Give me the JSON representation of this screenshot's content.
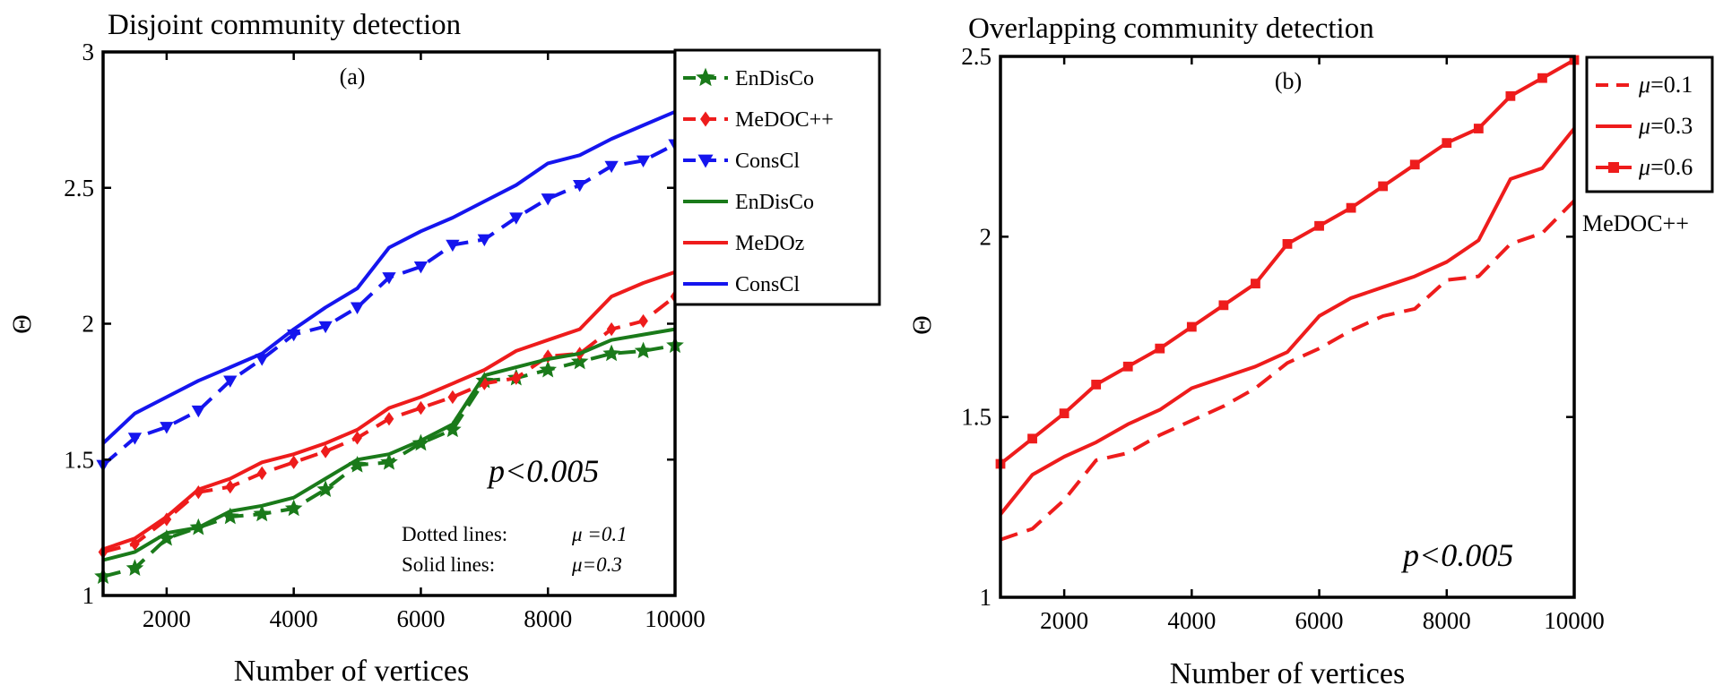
{
  "chart_data": [
    {
      "type": "line",
      "title": "Disjoint community detection",
      "panel_label": "(a)",
      "xlabel": "Number of vertices",
      "ylabel": "Θ",
      "xlim": [
        1000,
        10000
      ],
      "ylim": [
        1,
        3
      ],
      "xticks": [
        2000,
        4000,
        6000,
        8000,
        10000
      ],
      "yticks": [
        1,
        1.5,
        2,
        2.5,
        3
      ],
      "grid": false,
      "legend_position": "outside-top-right",
      "annotation": "p<0.005",
      "notes": [
        {
          "label": "Dotted lines:",
          "value": "μ =0.1"
        },
        {
          "label": "Solid lines:",
          "value": "μ=0.3"
        }
      ],
      "x": [
        1000,
        1500,
        2000,
        2500,
        3000,
        3500,
        4000,
        4500,
        5000,
        5500,
        6000,
        6500,
        7000,
        7500,
        8000,
        8500,
        9000,
        9500,
        10000
      ],
      "series": [
        {
          "name": "EnDisCo",
          "style": "dashed",
          "marker": "star",
          "color": "#1a7a1a",
          "values": [
            1.07,
            1.1,
            1.21,
            1.25,
            1.29,
            1.3,
            1.32,
            1.39,
            1.48,
            1.49,
            1.56,
            1.61,
            1.79,
            1.8,
            1.83,
            1.86,
            1.89,
            1.9,
            1.92
          ]
        },
        {
          "name": "MeDOC++",
          "style": "dashed",
          "marker": "diamond",
          "color": "#ee1c1c",
          "values": [
            1.16,
            1.19,
            1.28,
            1.38,
            1.4,
            1.45,
            1.49,
            1.53,
            1.58,
            1.65,
            1.69,
            1.73,
            1.78,
            1.8,
            1.88,
            1.89,
            1.98,
            2.01,
            2.1
          ]
        },
        {
          "name": "ConsCl",
          "style": "dashed",
          "marker": "triangle-down",
          "color": "#1515ee",
          "values": [
            1.48,
            1.58,
            1.62,
            1.68,
            1.79,
            1.87,
            1.96,
            1.99,
            2.06,
            2.17,
            2.21,
            2.29,
            2.31,
            2.39,
            2.46,
            2.51,
            2.58,
            2.6,
            2.66
          ]
        },
        {
          "name": "EnDisCo",
          "style": "solid",
          "marker": "none",
          "color": "#1a7a1a",
          "values": [
            1.13,
            1.16,
            1.23,
            1.25,
            1.31,
            1.33,
            1.36,
            1.43,
            1.5,
            1.52,
            1.57,
            1.63,
            1.81,
            1.84,
            1.87,
            1.89,
            1.94,
            1.96,
            1.98
          ]
        },
        {
          "name": "MeDOz",
          "style": "solid",
          "marker": "none",
          "color": "#ee1c1c",
          "values": [
            1.17,
            1.21,
            1.29,
            1.39,
            1.43,
            1.49,
            1.52,
            1.56,
            1.61,
            1.69,
            1.73,
            1.78,
            1.83,
            1.9,
            1.94,
            1.98,
            2.1,
            2.15,
            2.19
          ]
        },
        {
          "name": "ConsCl",
          "style": "solid",
          "marker": "none",
          "color": "#1515ee",
          "values": [
            1.56,
            1.67,
            1.73,
            1.79,
            1.84,
            1.89,
            1.98,
            2.06,
            2.13,
            2.28,
            2.34,
            2.39,
            2.45,
            2.51,
            2.59,
            2.62,
            2.68,
            2.73,
            2.78
          ]
        }
      ]
    },
    {
      "type": "line",
      "title": "Overlapping community detection",
      "panel_label": "(b)",
      "xlabel": "Number of vertices",
      "ylabel": "Θ",
      "xlim": [
        1000,
        10000
      ],
      "ylim": [
        1,
        2.5
      ],
      "xticks": [
        2000,
        4000,
        6000,
        8000,
        10000
      ],
      "yticks": [
        1,
        1.5,
        2,
        2.5
      ],
      "grid": false,
      "legend_position": "outside-top-right",
      "annotation": "p<0.005",
      "side_label": "MeDOC++",
      "x": [
        1000,
        1500,
        2000,
        2500,
        3000,
        3500,
        4000,
        4500,
        5000,
        5500,
        6000,
        6500,
        7000,
        7500,
        8000,
        8500,
        9000,
        9500,
        10000
      ],
      "series": [
        {
          "name": "μ=0.1",
          "style": "dashed",
          "marker": "none",
          "color": "#ee1c1c",
          "values": [
            1.16,
            1.19,
            1.27,
            1.38,
            1.4,
            1.45,
            1.49,
            1.53,
            1.58,
            1.65,
            1.69,
            1.74,
            1.78,
            1.8,
            1.88,
            1.89,
            1.98,
            2.01,
            2.1
          ]
        },
        {
          "name": "μ=0.3",
          "style": "solid",
          "marker": "none",
          "color": "#ee1c1c",
          "values": [
            1.23,
            1.34,
            1.39,
            1.43,
            1.48,
            1.52,
            1.58,
            1.61,
            1.64,
            1.68,
            1.78,
            1.83,
            1.86,
            1.89,
            1.93,
            1.99,
            2.16,
            2.19,
            2.3
          ]
        },
        {
          "name": "μ=0.6",
          "style": "solid",
          "marker": "square",
          "color": "#ee1c1c",
          "values": [
            1.37,
            1.44,
            1.51,
            1.59,
            1.64,
            1.69,
            1.75,
            1.81,
            1.87,
            1.98,
            2.03,
            2.08,
            2.14,
            2.2,
            2.26,
            2.3,
            2.39,
            2.44,
            2.49
          ]
        }
      ]
    }
  ]
}
